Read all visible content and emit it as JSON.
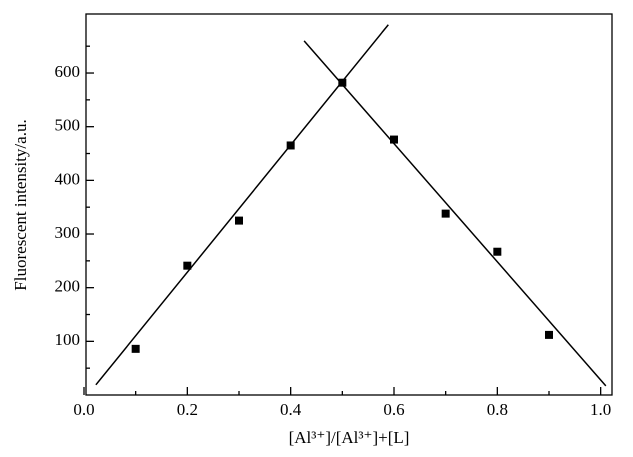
{
  "chart_data": {
    "type": "scatter",
    "x_label": "[Al³⁺]/[Al³⁺]+[L]",
    "y_label": "Fluorescent intensity/a.u.",
    "x": [
      0.1,
      0.2,
      0.3,
      0.4,
      0.5,
      0.6,
      0.7,
      0.8,
      0.9
    ],
    "values": [
      86,
      241,
      325,
      465,
      582,
      476,
      338,
      267,
      112
    ],
    "color": "#000000",
    "fit_lines": [
      {
        "x": [
          0.023,
          0.589
        ],
        "values": [
          19,
          690
        ]
      },
      {
        "x": [
          0.426,
          1.01
        ],
        "values": [
          660,
          17
        ]
      }
    ],
    "xlim": [
      0,
      1.02
    ],
    "ylim": [
      0,
      710
    ],
    "xticks": [
      {
        "value": 0,
        "label": "0.0"
      },
      0.2,
      0.4,
      0.6,
      0.8,
      {
        "value": 1,
        "label": "1.0"
      }
    ],
    "yticks": [
      100,
      200,
      300,
      400,
      500,
      600
    ],
    "xticks_minor": [
      0.1,
      0.3,
      0.5,
      0.7,
      0.9
    ],
    "yticks_minor": [
      50,
      150,
      250,
      350,
      450,
      550,
      650
    ]
  }
}
